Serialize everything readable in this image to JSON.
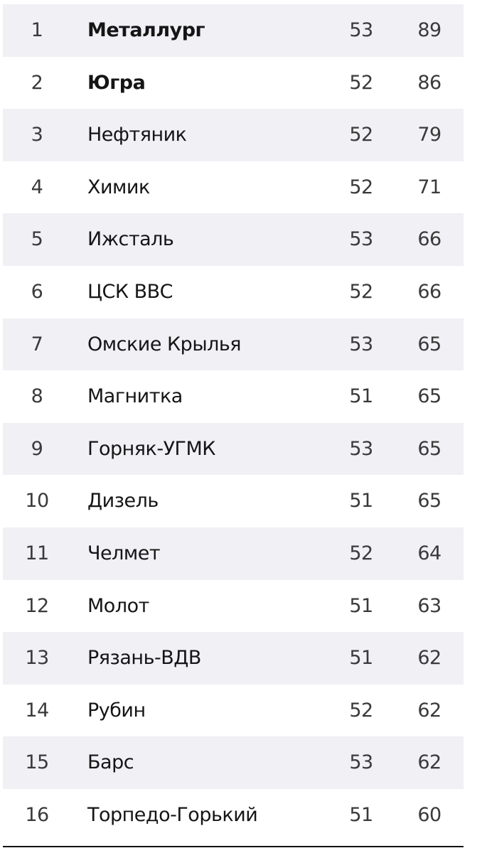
{
  "standings": [
    {
      "pos": "1",
      "team": "Металлург",
      "games": "53",
      "points": "89",
      "bold": true
    },
    {
      "pos": "2",
      "team": "Югра",
      "games": "52",
      "points": "86",
      "bold": true
    },
    {
      "pos": "3",
      "team": "Нефтяник",
      "games": "52",
      "points": "79"
    },
    {
      "pos": "4",
      "team": "Химик",
      "games": "52",
      "points": "71"
    },
    {
      "pos": "5",
      "team": "Ижсталь",
      "games": "53",
      "points": "66"
    },
    {
      "pos": "6",
      "team": "ЦСК ВВС",
      "games": "52",
      "points": "66"
    },
    {
      "pos": "7",
      "team": "Омские Крылья",
      "games": "53",
      "points": "65"
    },
    {
      "pos": "8",
      "team": "Магнитка",
      "games": "51",
      "points": "65"
    },
    {
      "pos": "9",
      "team": "Горняк-УГМК",
      "games": "53",
      "points": "65"
    },
    {
      "pos": "10",
      "team": "Дизель",
      "games": "51",
      "points": "65"
    },
    {
      "pos": "11",
      "team": "Челмет",
      "games": "52",
      "points": "64"
    },
    {
      "pos": "12",
      "team": "Молот",
      "games": "51",
      "points": "63"
    },
    {
      "pos": "13",
      "team": "Рязань-ВДВ",
      "games": "51",
      "points": "62"
    },
    {
      "pos": "14",
      "team": "Рубин",
      "games": "52",
      "points": "62"
    },
    {
      "pos": "15",
      "team": "Барс",
      "games": "53",
      "points": "62"
    },
    {
      "pos": "16",
      "team": "Торпедо-Горький",
      "games": "51",
      "points": "60"
    }
  ],
  "colors": {
    "stripe": "#f0f0f5",
    "text": "#151515",
    "numbers": "#3a3a3a",
    "rule": "#111111"
  }
}
